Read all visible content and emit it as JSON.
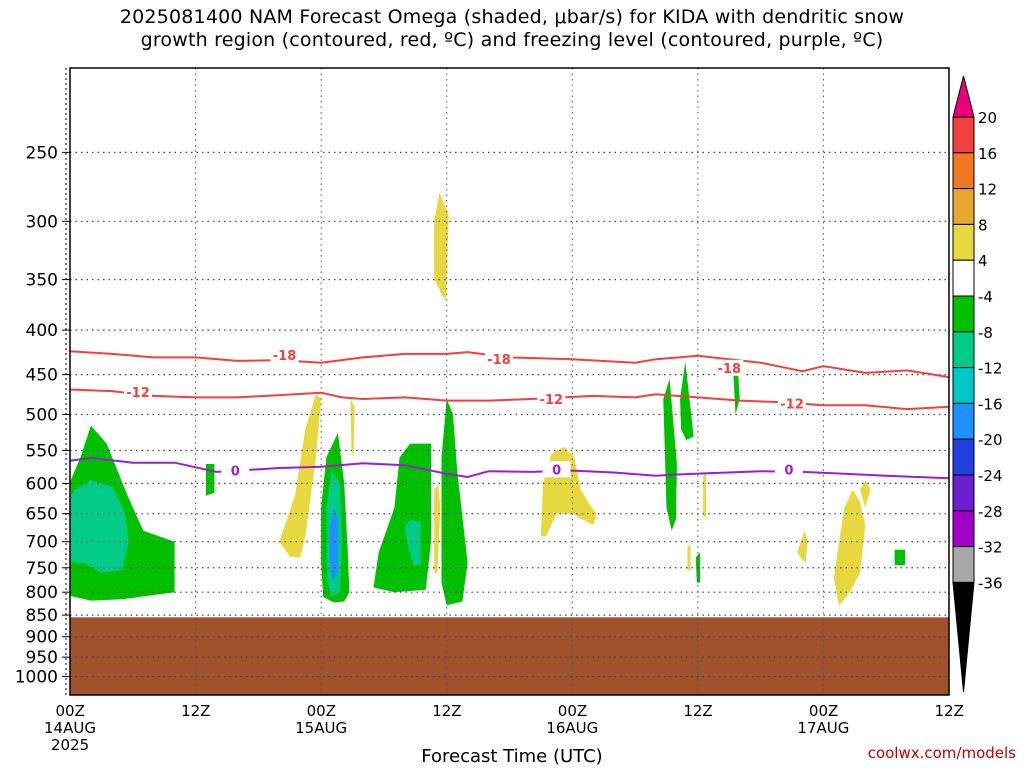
{
  "title_line1": "2025081400 NAM Forecast Omega (shaded, μbar/s) for KIDA with dendritic snow",
  "title_line2": "growth region (contoured, red, ºC) and freezing level (contoured, purple, ºC)",
  "credit": "coolwx.com/models",
  "chart_data": {
    "type": "heatmap",
    "xlabel": "Forecast Time (UTC)",
    "ylabel": "",
    "x_ticks": [
      {
        "label": "00Z",
        "sub": "14AUG",
        "sub2": "2025",
        "hour": 0
      },
      {
        "label": "12Z",
        "sub": "",
        "sub2": "",
        "hour": 12
      },
      {
        "label": "00Z",
        "sub": "15AUG",
        "sub2": "",
        "hour": 24
      },
      {
        "label": "12Z",
        "sub": "",
        "sub2": "",
        "hour": 36
      },
      {
        "label": "00Z",
        "sub": "16AUG",
        "sub2": "",
        "hour": 48
      },
      {
        "label": "12Z",
        "sub": "",
        "sub2": "",
        "hour": 60
      },
      {
        "label": "00Z",
        "sub": "17AUG",
        "sub2": "",
        "hour": 72
      },
      {
        "label": "12Z",
        "sub": "",
        "sub2": "",
        "hour": 84
      }
    ],
    "xlim_hours": [
      0,
      84
    ],
    "y_ticks": [
      250,
      300,
      350,
      400,
      450,
      500,
      550,
      600,
      650,
      700,
      750,
      800,
      850,
      900,
      950,
      1000
    ],
    "ylim_mb": [
      200,
      1050
    ],
    "y_scale": "log-pressure",
    "grid": true,
    "ground_level_mb": 855,
    "colorbar_labels": [
      "20",
      "16",
      "12",
      "8",
      "4",
      "-4",
      "-8",
      "-12",
      "-16",
      "-20",
      "-24",
      "-28",
      "-32",
      "-36"
    ],
    "colorbar_colors": [
      "#e8007f",
      "#f04040",
      "#f07820",
      "#e8a830",
      "#e8d840",
      "#ffffff",
      "#00c000",
      "#00cc88",
      "#00c8c8",
      "#1e90ff",
      "#1f3fe0",
      "#6c1fd0",
      "#a000c8",
      "#a8a8a8",
      "#000000"
    ],
    "contours": [
      {
        "value": "-18",
        "color": "#f04040",
        "points": [
          [
            0,
            423
          ],
          [
            4,
            426
          ],
          [
            8,
            430
          ],
          [
            12,
            430
          ],
          [
            16,
            434
          ],
          [
            20,
            433
          ],
          [
            24,
            436
          ],
          [
            28,
            430
          ],
          [
            32,
            426
          ],
          [
            36,
            426
          ],
          [
            38,
            424
          ],
          [
            42,
            430
          ],
          [
            48,
            432
          ],
          [
            54,
            436
          ],
          [
            56,
            432
          ],
          [
            60,
            428
          ],
          [
            66,
            436
          ],
          [
            70,
            446
          ],
          [
            72,
            440
          ],
          [
            76,
            448
          ],
          [
            80,
            445
          ],
          [
            84,
            453
          ]
        ],
        "labels": [
          [
            20.5,
            427
          ],
          [
            41,
            432
          ],
          [
            63,
            442
          ]
        ]
      },
      {
        "value": "-12",
        "color": "#f04040",
        "points": [
          [
            0,
            468
          ],
          [
            4,
            470
          ],
          [
            8,
            476
          ],
          [
            12,
            478
          ],
          [
            16,
            478
          ],
          [
            20,
            475
          ],
          [
            24,
            472
          ],
          [
            26,
            478
          ],
          [
            28,
            480
          ],
          [
            32,
            478
          ],
          [
            36,
            482
          ],
          [
            40,
            482
          ],
          [
            44,
            480
          ],
          [
            50,
            476
          ],
          [
            54,
            478
          ],
          [
            56,
            474
          ],
          [
            60,
            478
          ],
          [
            64,
            482
          ],
          [
            68,
            484
          ],
          [
            72,
            488
          ],
          [
            76,
            488
          ],
          [
            80,
            493
          ],
          [
            84,
            490
          ]
        ],
        "labels": [
          [
            6.5,
            471
          ],
          [
            46,
            480
          ],
          [
            69,
            486
          ]
        ]
      },
      {
        "value": "0",
        "color": "#9b1ecf",
        "points": [
          [
            0,
            565
          ],
          [
            2,
            561
          ],
          [
            6,
            568
          ],
          [
            10,
            568
          ],
          [
            14,
            582
          ],
          [
            16,
            580
          ],
          [
            20,
            576
          ],
          [
            24,
            574
          ],
          [
            28,
            569
          ],
          [
            32,
            572
          ],
          [
            36,
            585
          ],
          [
            38,
            590
          ],
          [
            40,
            581
          ],
          [
            44,
            582
          ],
          [
            48,
            580
          ],
          [
            52,
            583
          ],
          [
            56,
            588
          ],
          [
            58,
            586
          ],
          [
            61,
            584
          ],
          [
            66,
            581
          ],
          [
            70,
            582
          ],
          [
            74,
            585
          ],
          [
            78,
            588
          ],
          [
            84,
            592
          ]
        ],
        "labels": [
          [
            15.8,
            580
          ],
          [
            46.5,
            578
          ],
          [
            68.7,
            578
          ]
        ]
      }
    ],
    "omega_regions": [
      {
        "color": "#00c000",
        "pts": [
          [
            0,
            598
          ],
          [
            1,
            560
          ],
          [
            2,
            515
          ],
          [
            3.5,
            540
          ],
          [
            5.5,
            620
          ],
          [
            7,
            680
          ],
          [
            10,
            700
          ],
          [
            10,
            800
          ],
          [
            5,
            815
          ],
          [
            2,
            818
          ],
          [
            0,
            808
          ]
        ]
      },
      {
        "color": "#00cc88",
        "pts": [
          [
            0,
            622
          ],
          [
            0.5,
            610
          ],
          [
            2,
            595
          ],
          [
            4,
            605
          ],
          [
            5.3,
            650
          ],
          [
            5.6,
            700
          ],
          [
            5,
            755
          ],
          [
            3,
            760
          ],
          [
            1.5,
            742
          ],
          [
            0,
            738
          ]
        ]
      },
      {
        "color": "#00c000",
        "pts": [
          [
            13,
            570
          ],
          [
            13.8,
            570
          ],
          [
            13.8,
            615
          ],
          [
            13,
            620
          ]
        ]
      },
      {
        "color": "#e8d840",
        "pts": [
          [
            20,
            700
          ],
          [
            21.5,
            620
          ],
          [
            22.5,
            520
          ],
          [
            23.5,
            474
          ],
          [
            24,
            480
          ],
          [
            23.5,
            560
          ],
          [
            22.5,
            690
          ],
          [
            22,
            730
          ],
          [
            21,
            728
          ]
        ]
      },
      {
        "color": "#e8d840",
        "pts": [
          [
            26.8,
            480
          ],
          [
            27.2,
            490
          ],
          [
            27.1,
            560
          ],
          [
            26.9,
            550
          ]
        ]
      },
      {
        "color": "#00c000",
        "pts": [
          [
            24,
            640
          ],
          [
            24.5,
            560
          ],
          [
            25.6,
            525
          ],
          [
            26.2,
            600
          ],
          [
            26.5,
            700
          ],
          [
            26.7,
            800
          ],
          [
            26.2,
            820
          ],
          [
            25.2,
            822
          ],
          [
            24.2,
            810
          ],
          [
            24,
            740
          ]
        ]
      },
      {
        "color": "#00cc88",
        "pts": [
          [
            24.5,
            640
          ],
          [
            25,
            580
          ],
          [
            25.8,
            600
          ],
          [
            26,
            700
          ],
          [
            25.8,
            800
          ],
          [
            25,
            808
          ],
          [
            24.6,
            780
          ]
        ]
      },
      {
        "color": "#1e90ff",
        "pts": [
          [
            24.8,
            680
          ],
          [
            25.2,
            640
          ],
          [
            25.6,
            660
          ],
          [
            25.6,
            760
          ],
          [
            25.1,
            775
          ],
          [
            24.8,
            740
          ]
        ]
      },
      {
        "color": "#00c000",
        "pts": [
          [
            29,
            790
          ],
          [
            29.5,
            720
          ],
          [
            31,
            640
          ],
          [
            31.5,
            560
          ],
          [
            32.5,
            540
          ],
          [
            34.5,
            540
          ],
          [
            34.5,
            700
          ],
          [
            34,
            795
          ],
          [
            31,
            800
          ]
        ]
      },
      {
        "color": "#00cc88",
        "pts": [
          [
            32,
            675
          ],
          [
            32.5,
            660
          ],
          [
            33.5,
            665
          ],
          [
            33.5,
            745
          ],
          [
            32.8,
            745
          ],
          [
            32.2,
            700
          ]
        ]
      },
      {
        "color": "#e8d840",
        "pts": [
          [
            34.8,
            610
          ],
          [
            35.2,
            602
          ],
          [
            35.4,
            640
          ],
          [
            35.1,
            760
          ],
          [
            34.8,
            760
          ]
        ]
      },
      {
        "color": "#00c000",
        "pts": [
          [
            35.5,
            560
          ],
          [
            36,
            480
          ],
          [
            36.6,
            500
          ],
          [
            37,
            580
          ],
          [
            38,
            740
          ],
          [
            37.5,
            820
          ],
          [
            36,
            828
          ],
          [
            35.5,
            780
          ]
        ]
      },
      {
        "color": "#e8d840",
        "pts": [
          [
            34.8,
            300
          ],
          [
            35.3,
            278
          ],
          [
            36.2,
            295
          ],
          [
            35.9,
            370
          ],
          [
            35.6,
            365
          ],
          [
            34.8,
            350
          ]
        ]
      },
      {
        "color": "#e8d840",
        "pts": [
          [
            45,
            690
          ],
          [
            45.2,
            600
          ],
          [
            46,
            555
          ],
          [
            47.2,
            545
          ],
          [
            48.2,
            560
          ],
          [
            48.8,
            610
          ],
          [
            49.5,
            630
          ],
          [
            50.3,
            650
          ],
          [
            50,
            670
          ],
          [
            49,
            660
          ],
          [
            48,
            650
          ],
          [
            46.5,
            650
          ],
          [
            45.5,
            690
          ]
        ]
      },
      {
        "color": "#00c000",
        "pts": [
          [
            56.7,
            480
          ],
          [
            57.3,
            455
          ],
          [
            58,
            570
          ],
          [
            57.9,
            660
          ],
          [
            57.5,
            680
          ],
          [
            57,
            640
          ]
        ]
      },
      {
        "color": "#00c000",
        "pts": [
          [
            58.3,
            480
          ],
          [
            58.8,
            435
          ],
          [
            59.2,
            480
          ],
          [
            59.6,
            530
          ],
          [
            58.9,
            535
          ],
          [
            58.4,
            520
          ]
        ]
      },
      {
        "color": "#00c000",
        "pts": [
          [
            59.8,
            730
          ],
          [
            60.2,
            720
          ],
          [
            60.2,
            780
          ],
          [
            59.9,
            780
          ]
        ]
      },
      {
        "color": "#e8d840",
        "pts": [
          [
            59,
            710
          ],
          [
            59.3,
            705
          ],
          [
            59.3,
            755
          ],
          [
            59,
            755
          ]
        ]
      },
      {
        "color": "#e8d840",
        "pts": [
          [
            60.5,
            590
          ],
          [
            60.8,
            580
          ],
          [
            60.8,
            655
          ],
          [
            60.5,
            655
          ]
        ]
      },
      {
        "color": "#00c000",
        "pts": [
          [
            63.4,
            450
          ],
          [
            63.8,
            438
          ],
          [
            64,
            480
          ],
          [
            63.6,
            500
          ]
        ]
      },
      {
        "color": "#e8d840",
        "pts": [
          [
            69.5,
            720
          ],
          [
            70.2,
            680
          ],
          [
            70.5,
            700
          ],
          [
            70.3,
            740
          ],
          [
            69.8,
            730
          ]
        ]
      },
      {
        "color": "#e8d840",
        "pts": [
          [
            73,
            770
          ],
          [
            73.5,
            700
          ],
          [
            74,
            640
          ],
          [
            74.8,
            610
          ],
          [
            75.5,
            630
          ],
          [
            76,
            670
          ],
          [
            75.5,
            760
          ],
          [
            74.5,
            800
          ],
          [
            73.5,
            830
          ]
        ]
      },
      {
        "color": "#e8d840",
        "pts": [
          [
            75.5,
            610
          ],
          [
            76,
            595
          ],
          [
            76.5,
            610
          ],
          [
            76,
            640
          ]
        ]
      },
      {
        "color": "#00c000",
        "pts": [
          [
            78.8,
            715
          ],
          [
            79.8,
            715
          ],
          [
            79.8,
            745
          ],
          [
            78.8,
            745
          ]
        ]
      }
    ]
  }
}
